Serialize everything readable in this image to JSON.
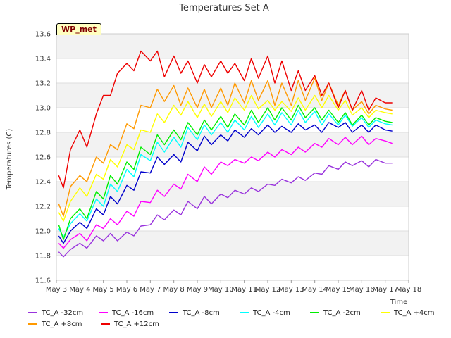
{
  "chart_data": {
    "type": "line",
    "title": "Temperatures Set A",
    "xlabel": "Time",
    "ylabel": "Temperatures (C)",
    "xlim": [
      0,
      15
    ],
    "ylim": [
      11.6,
      13.6
    ],
    "yticks": [
      11.6,
      11.8,
      12.0,
      12.2,
      12.4,
      12.6,
      12.8,
      13.0,
      13.2,
      13.4,
      13.6
    ],
    "xtick_labels": [
      "May 3",
      "May 4",
      "May 5",
      "May 6",
      "May 7",
      "May 8",
      "May 9",
      "May 10",
      "May 11",
      "May 12",
      "May 13",
      "May 14",
      "May 15",
      "May 16",
      "May 17",
      "May 18"
    ],
    "badge": "WP_met",
    "grid": true,
    "legend_position": "bottom",
    "series": [
      {
        "name": "TC_A -32cm",
        "color": "#9933dd",
        "x": [
          0.1,
          0.3,
          0.6,
          1.0,
          1.3,
          1.7,
          2.0,
          2.3,
          2.6,
          3.0,
          3.3,
          3.6,
          4.0,
          4.3,
          4.6,
          5.0,
          5.3,
          5.6,
          6.0,
          6.3,
          6.6,
          7.0,
          7.3,
          7.6,
          8.0,
          8.3,
          8.6,
          9.0,
          9.3,
          9.6,
          10.0,
          10.3,
          10.6,
          11.0,
          11.3,
          11.6,
          12.0,
          12.3,
          12.6,
          13.0,
          13.3,
          13.6,
          14.0,
          14.3
        ],
        "y": [
          11.83,
          11.79,
          11.85,
          11.9,
          11.86,
          11.96,
          11.92,
          11.98,
          11.92,
          11.99,
          11.96,
          12.04,
          12.05,
          12.13,
          12.09,
          12.17,
          12.13,
          12.24,
          12.18,
          12.28,
          12.22,
          12.3,
          12.27,
          12.33,
          12.3,
          12.35,
          12.32,
          12.38,
          12.37,
          12.42,
          12.39,
          12.44,
          12.41,
          12.47,
          12.46,
          12.53,
          12.5,
          12.56,
          12.53,
          12.57,
          12.52,
          12.58,
          12.55,
          12.55
        ]
      },
      {
        "name": "TC_A -16cm",
        "color": "#ff00ff",
        "x": [
          0.1,
          0.3,
          0.6,
          1.0,
          1.3,
          1.7,
          2.0,
          2.3,
          2.6,
          3.0,
          3.3,
          3.6,
          4.0,
          4.3,
          4.6,
          5.0,
          5.3,
          5.6,
          6.0,
          6.3,
          6.6,
          7.0,
          7.3,
          7.6,
          8.0,
          8.3,
          8.6,
          9.0,
          9.3,
          9.6,
          10.0,
          10.3,
          10.6,
          11.0,
          11.3,
          11.6,
          12.0,
          12.3,
          12.6,
          13.0,
          13.3,
          13.6,
          14.0,
          14.3
        ],
        "y": [
          11.9,
          11.86,
          11.93,
          11.98,
          11.92,
          12.05,
          12.02,
          12.1,
          12.05,
          12.16,
          12.12,
          12.24,
          12.23,
          12.33,
          12.28,
          12.38,
          12.34,
          12.46,
          12.4,
          12.52,
          12.46,
          12.56,
          12.53,
          12.58,
          12.55,
          12.6,
          12.57,
          12.64,
          12.6,
          12.66,
          12.62,
          12.68,
          12.64,
          12.71,
          12.68,
          12.75,
          12.7,
          12.76,
          12.7,
          12.77,
          12.7,
          12.75,
          12.73,
          12.71
        ]
      },
      {
        "name": "TC_A -8cm",
        "color": "#0000cc",
        "x": [
          0.1,
          0.3,
          0.6,
          1.0,
          1.3,
          1.7,
          2.0,
          2.3,
          2.6,
          3.0,
          3.3,
          3.6,
          4.0,
          4.3,
          4.6,
          5.0,
          5.3,
          5.6,
          6.0,
          6.3,
          6.6,
          7.0,
          7.3,
          7.6,
          8.0,
          8.3,
          8.6,
          9.0,
          9.3,
          9.6,
          10.0,
          10.3,
          10.6,
          11.0,
          11.3,
          11.6,
          12.0,
          12.3,
          12.6,
          13.0,
          13.3,
          13.6,
          14.0,
          14.3
        ],
        "y": [
          11.96,
          11.9,
          12.0,
          12.07,
          12.02,
          12.18,
          12.13,
          12.28,
          12.22,
          12.37,
          12.33,
          12.48,
          12.47,
          12.6,
          12.54,
          12.62,
          12.56,
          12.72,
          12.65,
          12.77,
          12.7,
          12.78,
          12.73,
          12.82,
          12.76,
          12.83,
          12.78,
          12.86,
          12.8,
          12.85,
          12.8,
          12.87,
          12.82,
          12.86,
          12.8,
          12.88,
          12.84,
          12.88,
          12.8,
          12.86,
          12.8,
          12.86,
          12.82,
          12.81
        ]
      },
      {
        "name": "TC_A -4cm",
        "color": "#00ffff",
        "x": [
          0.1,
          0.3,
          0.6,
          1.0,
          1.3,
          1.7,
          2.0,
          2.3,
          2.6,
          3.0,
          3.3,
          3.6,
          4.0,
          4.3,
          4.6,
          5.0,
          5.3,
          5.6,
          6.0,
          6.3,
          6.6,
          7.0,
          7.3,
          7.6,
          8.0,
          8.3,
          8.6,
          9.0,
          9.3,
          9.6,
          10.0,
          10.3,
          10.6,
          11.0,
          11.3,
          11.6,
          12.0,
          12.3,
          12.6,
          13.0,
          13.3,
          13.6,
          14.0,
          14.3
        ],
        "y": [
          12.02,
          11.95,
          12.06,
          12.14,
          12.08,
          12.26,
          12.2,
          12.38,
          12.32,
          12.5,
          12.44,
          12.62,
          12.57,
          12.72,
          12.64,
          12.76,
          12.68,
          12.84,
          12.74,
          12.86,
          12.78,
          12.88,
          12.8,
          12.9,
          12.82,
          12.93,
          12.84,
          12.95,
          12.86,
          12.96,
          12.86,
          12.98,
          12.88,
          12.97,
          12.86,
          12.95,
          12.86,
          12.94,
          12.85,
          12.92,
          12.84,
          12.9,
          12.87,
          12.86
        ]
      },
      {
        "name": "TC_A -2cm",
        "color": "#00ee00",
        "x": [
          0.1,
          0.3,
          0.6,
          1.0,
          1.3,
          1.7,
          2.0,
          2.3,
          2.6,
          3.0,
          3.3,
          3.6,
          4.0,
          4.3,
          4.6,
          5.0,
          5.3,
          5.6,
          6.0,
          6.3,
          6.6,
          7.0,
          7.3,
          7.6,
          8.0,
          8.3,
          8.6,
          9.0,
          9.3,
          9.6,
          10.0,
          10.3,
          10.6,
          11.0,
          11.3,
          11.6,
          12.0,
          12.3,
          12.6,
          13.0,
          13.3,
          13.6,
          14.0,
          14.3
        ],
        "y": [
          12.05,
          11.93,
          12.1,
          12.18,
          12.1,
          12.32,
          12.26,
          12.45,
          12.38,
          12.56,
          12.5,
          12.68,
          12.62,
          12.78,
          12.7,
          12.82,
          12.74,
          12.88,
          12.78,
          12.9,
          12.82,
          12.93,
          12.84,
          12.95,
          12.86,
          12.98,
          12.88,
          13.0,
          12.9,
          13.0,
          12.9,
          13.02,
          12.92,
          13.0,
          12.9,
          12.98,
          12.88,
          12.96,
          12.86,
          12.94,
          12.86,
          12.92,
          12.89,
          12.88
        ]
      },
      {
        "name": "TC_A +4cm",
        "color": "#ffff00",
        "x": [
          0.1,
          0.3,
          0.6,
          1.0,
          1.3,
          1.7,
          2.0,
          2.3,
          2.6,
          3.0,
          3.3,
          3.6,
          4.0,
          4.3,
          4.6,
          5.0,
          5.3,
          5.6,
          6.0,
          6.3,
          6.6,
          7.0,
          7.3,
          7.6,
          8.0,
          8.3,
          8.6,
          9.0,
          9.3,
          9.6,
          10.0,
          10.3,
          10.6,
          11.0,
          11.3,
          11.6,
          12.0,
          12.3,
          12.6,
          13.0,
          13.3,
          13.6,
          14.0,
          14.3
        ],
        "y": [
          12.15,
          12.08,
          12.24,
          12.35,
          12.28,
          12.46,
          12.42,
          12.58,
          12.52,
          12.7,
          12.66,
          12.82,
          12.8,
          12.95,
          12.88,
          13.02,
          12.94,
          13.05,
          12.92,
          13.03,
          12.93,
          13.05,
          12.96,
          13.08,
          12.98,
          13.1,
          12.99,
          13.06,
          12.98,
          13.05,
          12.97,
          13.08,
          12.98,
          13.1,
          13.0,
          13.1,
          12.98,
          13.06,
          12.94,
          13.0,
          12.92,
          12.98,
          12.96,
          12.95
        ]
      },
      {
        "name": "TC_A +8cm",
        "color": "#ff9900",
        "x": [
          0.1,
          0.3,
          0.6,
          1.0,
          1.3,
          1.7,
          2.0,
          2.3,
          2.6,
          3.0,
          3.3,
          3.6,
          4.0,
          4.3,
          4.6,
          5.0,
          5.3,
          5.6,
          6.0,
          6.3,
          6.6,
          7.0,
          7.3,
          7.6,
          8.0,
          8.3,
          8.6,
          9.0,
          9.3,
          9.6,
          10.0,
          10.3,
          10.6,
          11.0,
          11.3,
          11.6,
          12.0,
          12.3,
          12.6,
          13.0,
          13.3,
          13.6,
          14.0,
          14.3
        ],
        "y": [
          12.22,
          12.12,
          12.36,
          12.45,
          12.4,
          12.6,
          12.55,
          12.7,
          12.66,
          12.87,
          12.83,
          13.02,
          13.0,
          13.15,
          13.05,
          13.18,
          13.02,
          13.16,
          13.0,
          13.15,
          13.0,
          13.16,
          13.02,
          13.2,
          13.04,
          13.22,
          13.06,
          13.22,
          13.02,
          13.2,
          13.02,
          13.22,
          13.06,
          13.24,
          13.06,
          13.2,
          13.02,
          13.14,
          12.98,
          13.05,
          12.95,
          13.02,
          12.99,
          12.98
        ]
      },
      {
        "name": "TC_A +12cm",
        "color": "#ee0000",
        "x": [
          0.1,
          0.3,
          0.6,
          1.0,
          1.3,
          1.7,
          2.0,
          2.3,
          2.6,
          3.0,
          3.3,
          3.6,
          4.0,
          4.3,
          4.6,
          5.0,
          5.3,
          5.6,
          6.0,
          6.3,
          6.6,
          7.0,
          7.3,
          7.6,
          8.0,
          8.3,
          8.6,
          9.0,
          9.3,
          9.6,
          10.0,
          10.3,
          10.6,
          11.0,
          11.3,
          11.6,
          12.0,
          12.3,
          12.6,
          13.0,
          13.3,
          13.6,
          14.0,
          14.3
        ],
        "y": [
          12.45,
          12.35,
          12.66,
          12.82,
          12.68,
          12.95,
          13.1,
          13.1,
          13.28,
          13.36,
          13.3,
          13.46,
          13.38,
          13.46,
          13.25,
          13.42,
          13.28,
          13.38,
          13.2,
          13.35,
          13.25,
          13.38,
          13.28,
          13.36,
          13.22,
          13.4,
          13.24,
          13.42,
          13.2,
          13.38,
          13.14,
          13.3,
          13.14,
          13.26,
          13.1,
          13.2,
          13.0,
          13.14,
          12.98,
          13.14,
          12.98,
          13.08,
          13.04,
          13.04
        ]
      }
    ]
  }
}
